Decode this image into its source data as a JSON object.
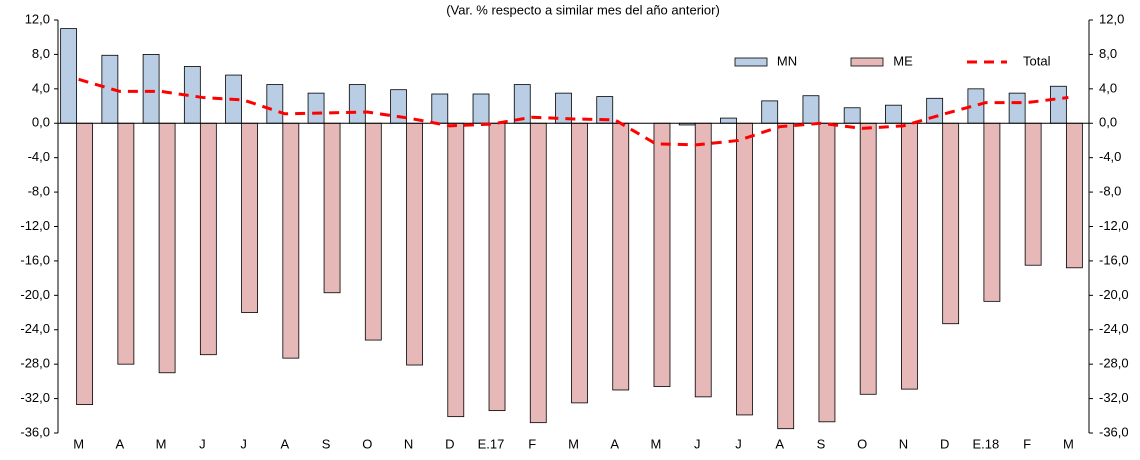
{
  "chart_data": {
    "type": "bar",
    "subtitle": "(Var. % respecto a similar mes del año anterior)",
    "categories": [
      "M",
      "A",
      "M",
      "J",
      "J",
      "A",
      "S",
      "O",
      "N",
      "D",
      "E.17",
      "F",
      "M",
      "A",
      "M",
      "J",
      "J",
      "A",
      "S",
      "O",
      "N",
      "D",
      "E.18",
      "F",
      "M"
    ],
    "series": [
      {
        "name": "MN",
        "type": "bar",
        "color": "#b9cde5",
        "values": [
          11.0,
          7.9,
          8.0,
          6.6,
          5.6,
          4.5,
          3.5,
          4.5,
          3.9,
          3.4,
          3.4,
          4.5,
          3.5,
          3.1,
          0.0,
          -0.2,
          0.6,
          2.6,
          3.2,
          1.8,
          2.1,
          2.9,
          4.0,
          3.5,
          4.3
        ]
      },
      {
        "name": "ME",
        "type": "bar",
        "color": "#e6b9b8",
        "values": [
          -32.7,
          -28.0,
          -29.0,
          -26.9,
          -22.0,
          -27.3,
          -19.7,
          -25.2,
          -28.1,
          -34.1,
          -33.4,
          -34.8,
          -32.5,
          -31.0,
          -30.6,
          -31.8,
          -33.9,
          -35.5,
          -34.7,
          -31.5,
          -30.9,
          -23.3,
          -20.7,
          -16.5,
          -16.8
        ]
      },
      {
        "name": "Total",
        "type": "line",
        "color": "#ff0000",
        "dashed": true,
        "values": [
          5.1,
          3.7,
          3.7,
          3.0,
          2.7,
          1.1,
          1.2,
          1.3,
          0.6,
          -0.3,
          -0.1,
          0.7,
          0.5,
          0.4,
          -2.4,
          -2.5,
          -2.0,
          -0.4,
          0.0,
          -0.6,
          -0.3,
          1.1,
          2.4,
          2.4,
          3.0
        ]
      }
    ],
    "ylim": [
      -36,
      12
    ],
    "yticks": [
      {
        "value": 12,
        "label": "12,0"
      },
      {
        "value": 8,
        "label": "8,0"
      },
      {
        "value": 4,
        "label": "4,0"
      },
      {
        "value": 0,
        "label": "0,0"
      },
      {
        "value": -4,
        "label": "-4,0"
      },
      {
        "value": -8,
        "label": "-8,0"
      },
      {
        "value": -12,
        "label": "-12,0"
      },
      {
        "value": -16,
        "label": "-16,0"
      },
      {
        "value": -20,
        "label": "-20,0"
      },
      {
        "value": -24,
        "label": "-24,0"
      },
      {
        "value": -28,
        "label": "-28,0"
      },
      {
        "value": -32,
        "label": "-32,0"
      },
      {
        "value": -36,
        "label": "-36,0"
      }
    ],
    "y2lim": [
      -36,
      12
    ],
    "y2ticks": [
      {
        "value": 12,
        "label": "12,0"
      },
      {
        "value": 8,
        "label": "8,0"
      },
      {
        "value": 4,
        "label": "4,0"
      },
      {
        "value": 0,
        "label": "0,0"
      },
      {
        "value": -4,
        "label": "-4,0"
      },
      {
        "value": -8,
        "label": "-8,0"
      },
      {
        "value": -12,
        "label": "-12,0"
      },
      {
        "value": -16,
        "label": "-16,0"
      },
      {
        "value": -20,
        "label": "-20,0"
      },
      {
        "value": -24,
        "label": "-24,0"
      },
      {
        "value": -28,
        "label": "-28,0"
      },
      {
        "value": -32,
        "label": "-32,0"
      },
      {
        "value": -36,
        "label": "-36,0"
      }
    ],
    "grid": false,
    "legend": "upper right"
  }
}
